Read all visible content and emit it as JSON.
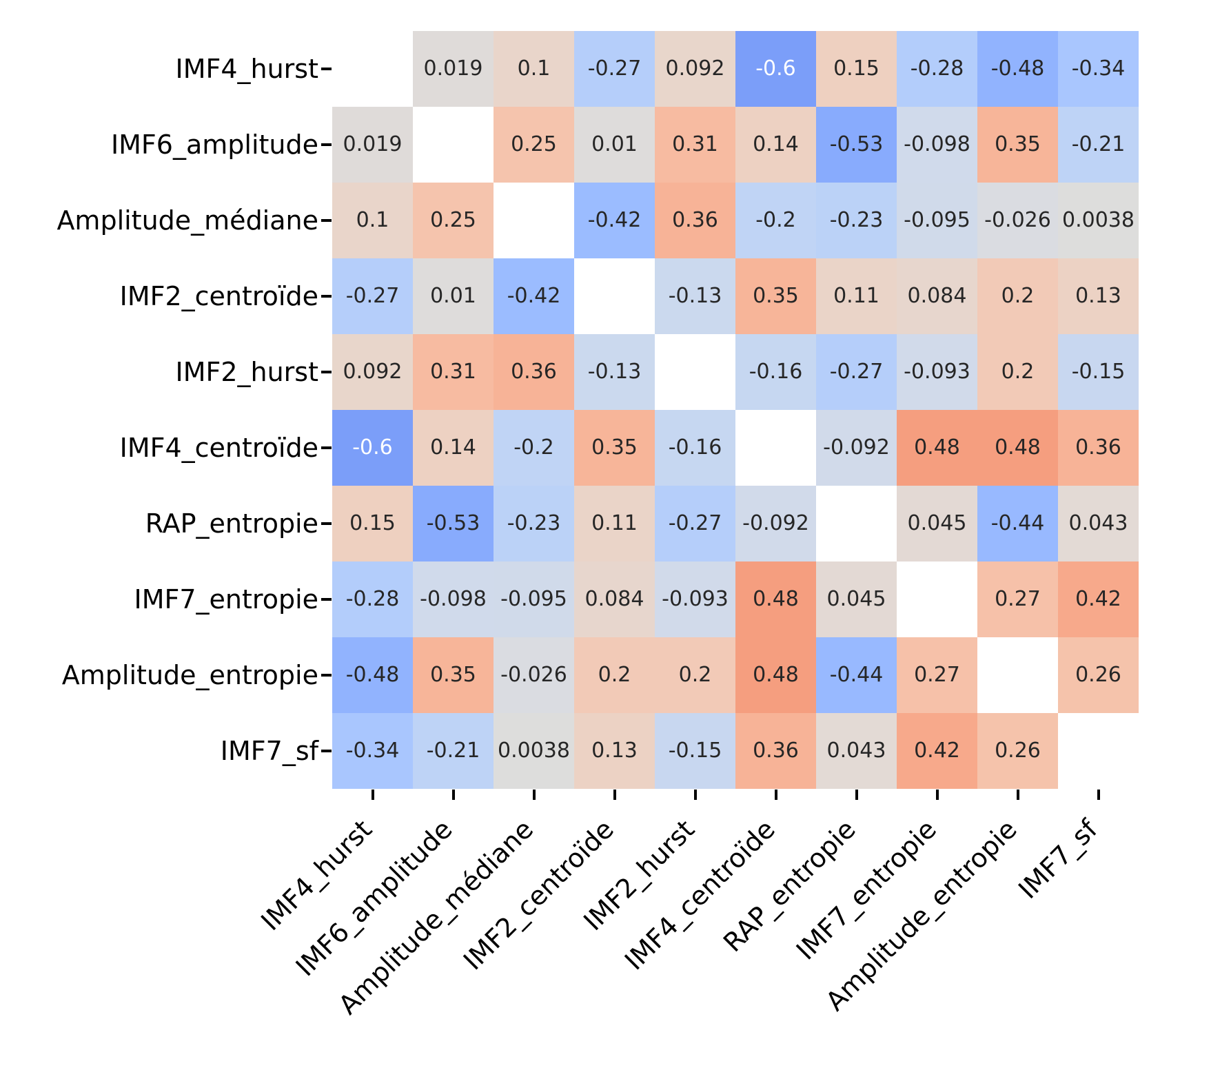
{
  "figure": {
    "background": "#ffffff",
    "title": ""
  },
  "chart_data": {
    "type": "heatmap",
    "subtype": "correlation-matrix",
    "colormap": "coolwarm",
    "vmin": -1,
    "vmax": 1,
    "diagonal_masked": true,
    "annotated": true,
    "legend_position": "none",
    "grid": false,
    "categories": [
      "IMF4_hurst",
      "IMF6_amplitude",
      "Amplitude_médiane",
      "IMF2_centroïde",
      "IMF2_hurst",
      "IMF4_centroïde",
      "RAP_entropie",
      "IMF7_entropie",
      "Amplitude_entropie",
      "IMF7_sf"
    ],
    "matrix": [
      [
        null,
        0.019,
        0.1,
        -0.27,
        0.092,
        -0.6,
        0.15,
        -0.28,
        -0.48,
        -0.34
      ],
      [
        0.019,
        null,
        0.25,
        0.01,
        0.31,
        0.14,
        -0.53,
        -0.098,
        0.35,
        -0.21
      ],
      [
        0.1,
        0.25,
        null,
        -0.42,
        0.36,
        -0.2,
        -0.23,
        -0.095,
        -0.026,
        0.0038
      ],
      [
        -0.27,
        0.01,
        -0.42,
        null,
        -0.13,
        0.35,
        0.11,
        0.084,
        0.2,
        0.13
      ],
      [
        0.092,
        0.31,
        0.36,
        -0.13,
        null,
        -0.16,
        -0.27,
        -0.093,
        0.2,
        -0.15
      ],
      [
        -0.6,
        0.14,
        -0.2,
        0.35,
        -0.16,
        null,
        -0.092,
        0.48,
        0.48,
        0.36
      ],
      [
        0.15,
        -0.53,
        -0.23,
        0.11,
        -0.27,
        -0.092,
        null,
        0.045,
        -0.44,
        0.043
      ],
      [
        -0.28,
        -0.098,
        -0.095,
        0.084,
        -0.093,
        0.48,
        0.045,
        null,
        0.27,
        0.42
      ],
      [
        -0.48,
        0.35,
        -0.026,
        0.2,
        0.2,
        0.48,
        -0.44,
        0.27,
        null,
        0.26
      ],
      [
        -0.34,
        -0.21,
        0.0038,
        0.13,
        -0.15,
        0.36,
        0.043,
        0.42,
        0.26,
        null
      ]
    ]
  },
  "colors": {
    "masked_cell": "#ffffff",
    "annotation_dark": "#262626",
    "annotation_light": "#ffffff",
    "axis_label": "#000000",
    "tick_mark": "#000000"
  }
}
